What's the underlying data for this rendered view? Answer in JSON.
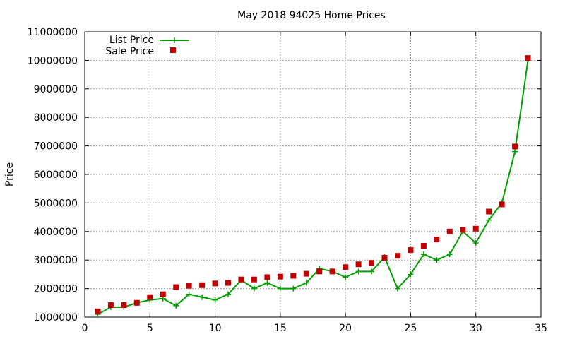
{
  "chart_data": {
    "type": "line",
    "title": "May 2018 94025 Home Prices",
    "xlabel": "",
    "ylabel": "Price",
    "xlim": [
      0,
      35
    ],
    "ylim": [
      1000000,
      11000000
    ],
    "x_ticks": [
      0,
      5,
      10,
      15,
      20,
      25,
      30,
      35
    ],
    "y_ticks": [
      1000000,
      2000000,
      3000000,
      4000000,
      5000000,
      6000000,
      7000000,
      8000000,
      9000000,
      10000000,
      11000000
    ],
    "grid": true,
    "legend_position": "top-left",
    "series": [
      {
        "name": "List Price",
        "style": "line+cross",
        "color": "#00a000",
        "x": [
          1,
          2,
          3,
          4,
          5,
          6,
          7,
          8,
          9,
          10,
          11,
          12,
          13,
          14,
          15,
          16,
          17,
          18,
          19,
          20,
          21,
          22,
          23,
          24,
          25,
          26,
          27,
          28,
          29,
          30,
          31,
          32,
          33,
          34
        ],
        "values": [
          1100000,
          1350000,
          1350000,
          1500000,
          1600000,
          1650000,
          1400000,
          1800000,
          1700000,
          1600000,
          1800000,
          2300000,
          2000000,
          2200000,
          2000000,
          2000000,
          2200000,
          2700000,
          2600000,
          2400000,
          2600000,
          2600000,
          3100000,
          2000000,
          2500000,
          3200000,
          3000000,
          3200000,
          4000000,
          3600000,
          4400000,
          5000000,
          6800000,
          10000000
        ]
      },
      {
        "name": "Sale Price",
        "style": "square-markers",
        "color": "#c00000",
        "x": [
          1,
          2,
          3,
          4,
          5,
          6,
          7,
          8,
          9,
          10,
          11,
          12,
          13,
          14,
          15,
          16,
          17,
          18,
          19,
          20,
          21,
          22,
          23,
          24,
          25,
          26,
          27,
          28,
          29,
          30,
          31,
          32,
          33,
          34
        ],
        "values": [
          1200000,
          1420000,
          1420000,
          1500000,
          1700000,
          1800000,
          2050000,
          2100000,
          2120000,
          2180000,
          2200000,
          2320000,
          2320000,
          2400000,
          2420000,
          2450000,
          2520000,
          2600000,
          2600000,
          2750000,
          2850000,
          2900000,
          3080000,
          3150000,
          3350000,
          3500000,
          3720000,
          4000000,
          4060000,
          4100000,
          4700000,
          4950000,
          6980000,
          10080000
        ]
      }
    ]
  }
}
